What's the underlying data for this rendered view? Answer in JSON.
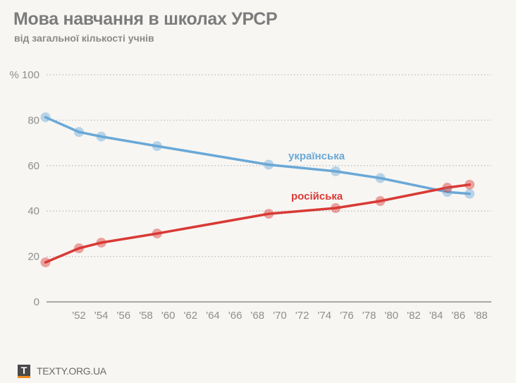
{
  "header": {
    "title": "Мова навчання в школах УРСР",
    "subtitle": "від загальної кількості учнів"
  },
  "footer": {
    "logo_letter": "T",
    "site": "TEXTY.ORG.UA"
  },
  "colors": {
    "ukrainian": "#6aa8d6",
    "russian": "#d93a35",
    "grid": "#bdbdbd",
    "axis": "#a8a8a8",
    "logo_accent": "#f08a1c"
  },
  "chart_data": {
    "type": "line",
    "title": "Мова навчання в школах УРСР",
    "subtitle": "від загальної кількості учнів",
    "xlabel": "",
    "ylabel": "%",
    "ylim": [
      0,
      100
    ],
    "xlim": [
      1949,
      1988
    ],
    "y_ticks": [
      0,
      20,
      40,
      60,
      80,
      100
    ],
    "y_tick_labels": [
      "0",
      "20",
      "40",
      "60",
      "80",
      "% 100"
    ],
    "x_ticks": [
      1952,
      1954,
      1956,
      1958,
      1960,
      1962,
      1964,
      1966,
      1968,
      1970,
      1972,
      1974,
      1976,
      1978,
      1980,
      1982,
      1984,
      1986,
      1988
    ],
    "x_tick_labels": [
      "'52",
      "'54",
      "'56",
      "'58",
      "'60",
      "'62",
      "'64",
      "'66",
      "'68",
      "'70",
      "'72",
      "'74",
      "'76",
      "'78",
      "'80",
      "'82",
      "'84",
      "'86",
      "'88"
    ],
    "grid": true,
    "legend": "inline labels",
    "x": [
      1949,
      1952,
      1954,
      1959,
      1969,
      1975,
      1979,
      1985,
      1987
    ],
    "series": [
      {
        "name": "українська",
        "key": "ukrainian",
        "values": [
          81.3,
          74.8,
          72.8,
          68.6,
          60.4,
          57.5,
          54.5,
          48.4,
          47.6
        ]
      },
      {
        "name": "російська",
        "key": "russian",
        "values": [
          17.4,
          23.6,
          26.1,
          30.1,
          38.8,
          41.3,
          44.4,
          50.3,
          51.6
        ]
      }
    ]
  }
}
